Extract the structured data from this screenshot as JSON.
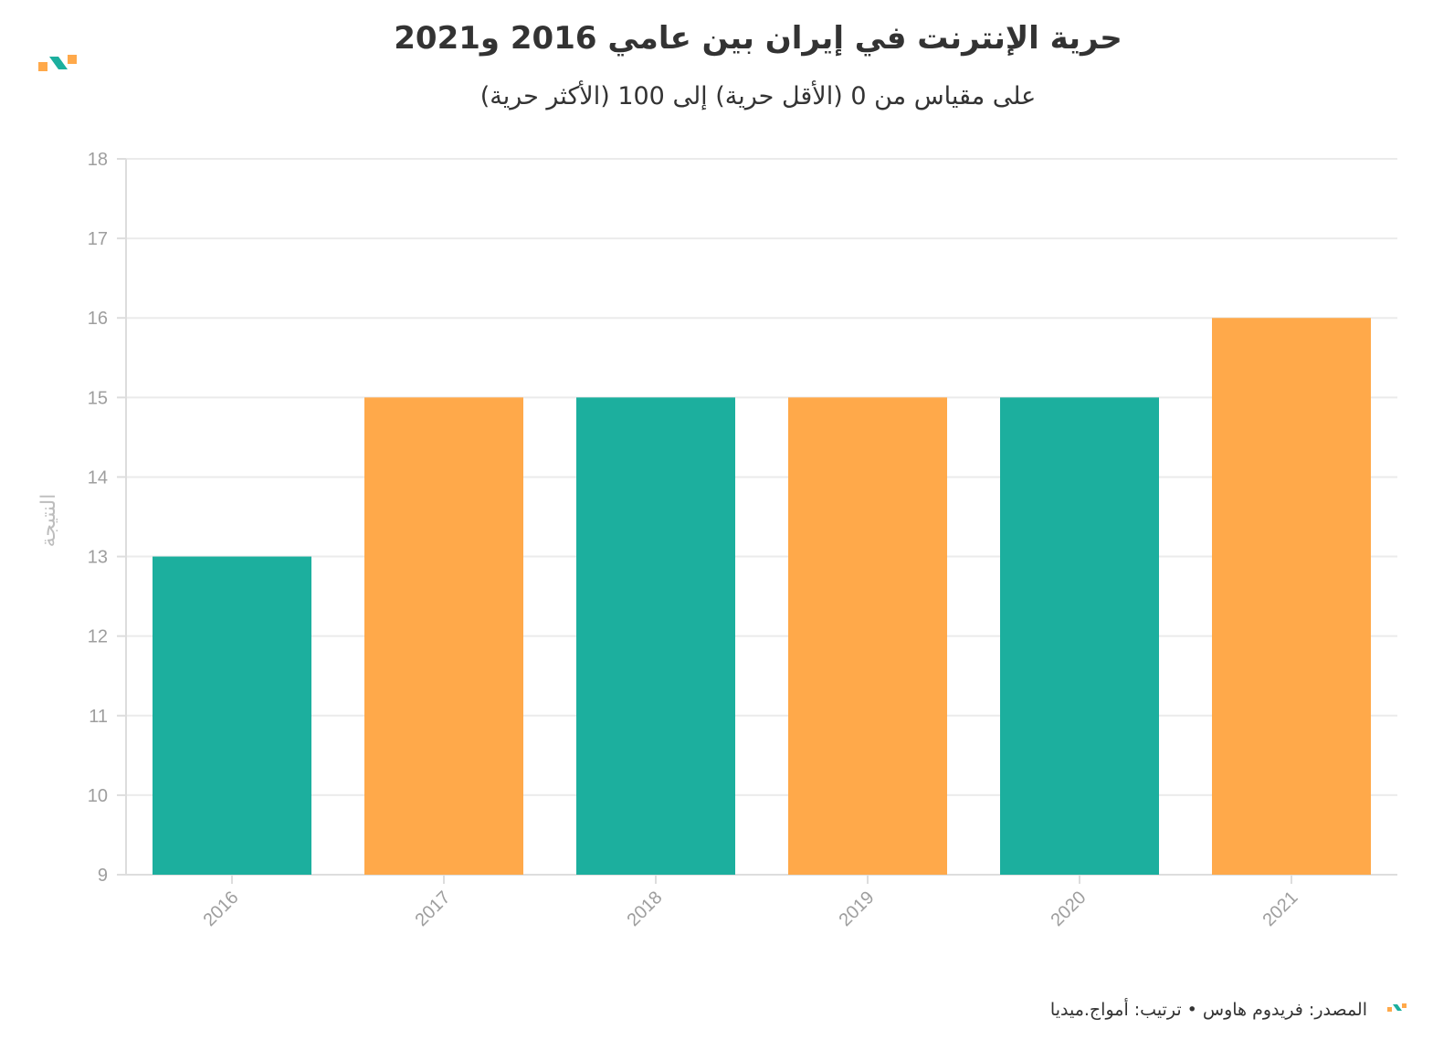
{
  "chart_data": {
    "type": "bar",
    "title": "حرية الإنترنت في إيران بين عامي 2016 و2021",
    "subtitle": "على مقياس من 0 (الأقل حرية) إلى 100 (الأكثر حرية)",
    "xlabel": "",
    "ylabel": "النتيجة",
    "categories": [
      "2016",
      "2017",
      "2018",
      "2019",
      "2020",
      "2021"
    ],
    "values": [
      13,
      15,
      15,
      15,
      15,
      16
    ],
    "bar_colors": [
      "#1caf9e",
      "#ffa94a",
      "#1caf9e",
      "#ffa94a",
      "#1caf9e",
      "#ffa94a"
    ],
    "ylim": [
      9,
      18
    ],
    "yticks": [
      9,
      10,
      11,
      12,
      13,
      14,
      15,
      16,
      17,
      18
    ],
    "grid": true,
    "legend": "none"
  },
  "footer": {
    "source": "المصدر: فريدوم هاوس • ترتيب: أمواج.ميديا"
  },
  "brand": {
    "teal": "#1caf9e",
    "orange": "#ffa94a"
  }
}
